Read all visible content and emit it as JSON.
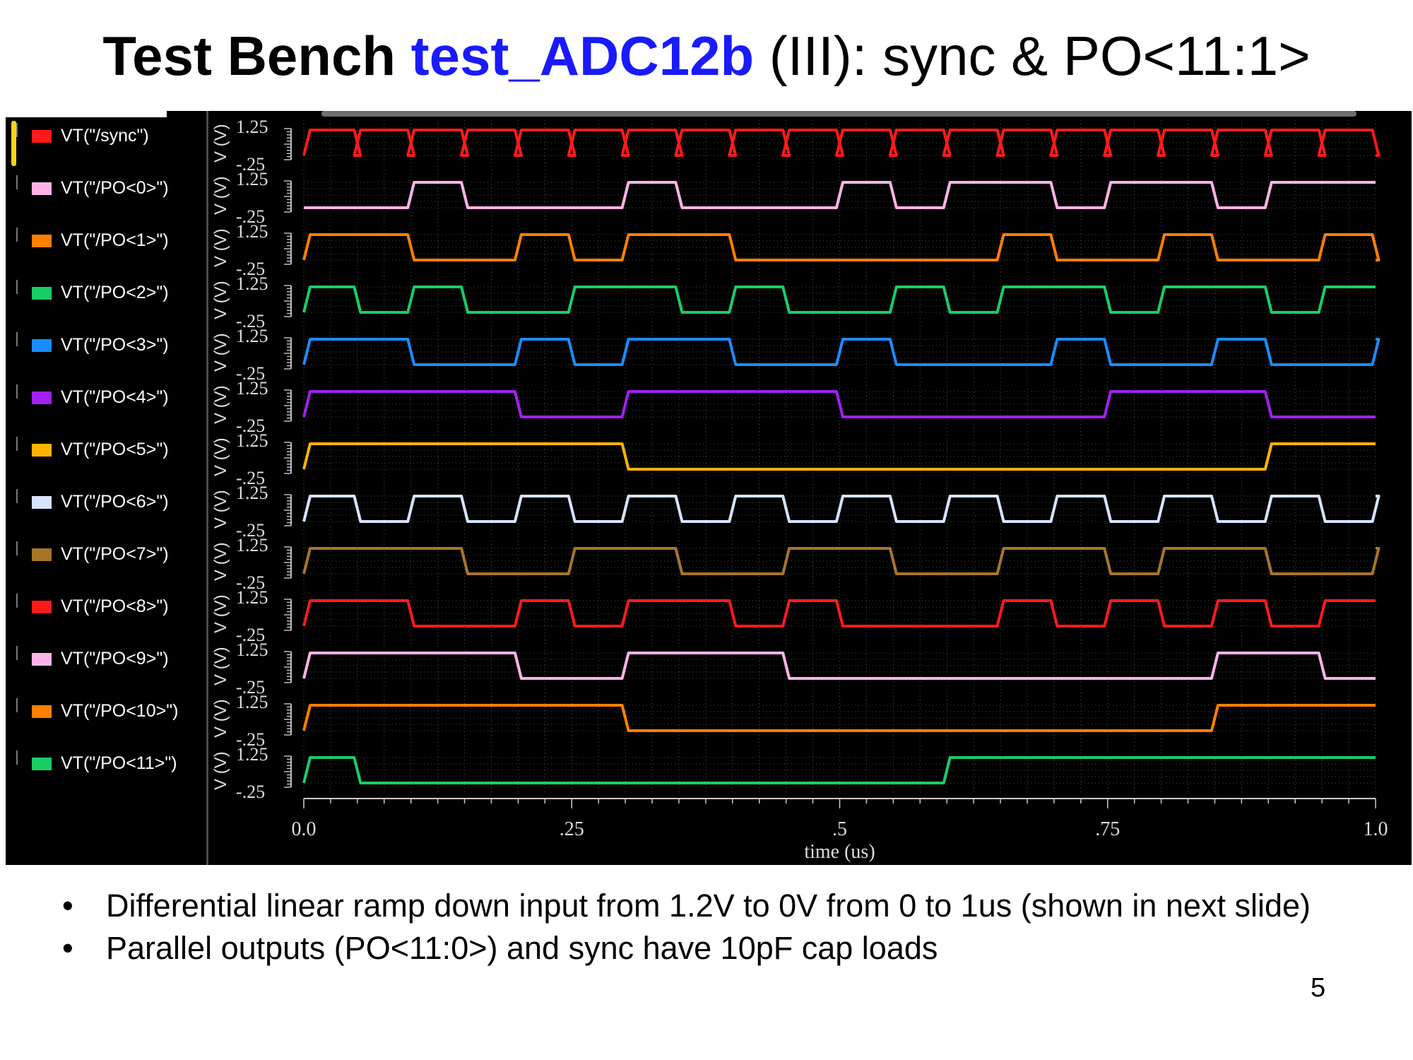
{
  "slide": {
    "title_part1": "Test Bench ",
    "title_part2": "test_ADC12b",
    "title_part3": " (III): sync & PO<11:1>",
    "bullets": [
      "Differential linear ramp down input from 1.2V to 0V from 0 to 1us (shown in next slide)",
      "Parallel outputs (PO<11:0>) and sync have 10pF cap loads"
    ],
    "page_number": "5"
  },
  "chart_data": {
    "type": "line",
    "xlabel": "time (us)",
    "ylabel": "V (V)",
    "x_range": [
      0,
      1.0
    ],
    "x_ticks": [
      "0.0",
      ".25",
      ".5",
      ".75",
      "1.0"
    ],
    "y_range": [
      -0.25,
      1.25
    ],
    "y_ticks": [
      "1.25",
      "-.25"
    ],
    "high_level": 1.2,
    "low_level": 0.0,
    "grid": true,
    "legend_placement": "left",
    "background": "#000000",
    "series": [
      {
        "name": "VT(\"/sync\")",
        "color": "#ff1a1a",
        "initial": 1,
        "transitions": [
          0.05,
          0.05,
          0.1,
          0.1,
          0.15,
          0.15,
          0.2,
          0.2,
          0.25,
          0.25,
          0.3,
          0.3,
          0.35,
          0.35,
          0.4,
          0.4,
          0.45,
          0.45,
          0.5,
          0.5,
          0.55,
          0.55,
          0.6,
          0.6,
          0.65,
          0.65,
          0.7,
          0.7,
          0.75,
          0.75,
          0.8,
          0.8,
          0.85,
          0.85,
          0.9,
          0.9,
          0.95,
          0.95,
          1.0
        ]
      },
      {
        "name": "VT(\"/PO<0>\")",
        "color": "#ffb3e6",
        "initial": 0,
        "transitions": [
          0.1,
          0.15,
          0.3,
          0.35,
          0.5,
          0.55,
          0.6,
          0.7,
          0.75,
          0.85,
          0.9
        ]
      },
      {
        "name": "VT(\"/PO<1>\")",
        "color": "#ff8000",
        "initial": 1,
        "transitions": [
          0.1,
          0.2,
          0.25,
          0.3,
          0.4,
          0.65,
          0.7,
          0.8,
          0.85,
          0.95,
          1.0
        ]
      },
      {
        "name": "VT(\"/PO<2>\")",
        "color": "#19cc66",
        "initial": 1,
        "transitions": [
          0.05,
          0.1,
          0.15,
          0.25,
          0.35,
          0.4,
          0.45,
          0.55,
          0.6,
          0.65,
          0.75,
          0.8,
          0.9,
          0.95
        ]
      },
      {
        "name": "VT(\"/PO<3>\")",
        "color": "#1a8cff",
        "initial": 1,
        "transitions": [
          0.1,
          0.2,
          0.25,
          0.3,
          0.4,
          0.5,
          0.55,
          0.7,
          0.75,
          0.85,
          0.9,
          1.0
        ]
      },
      {
        "name": "VT(\"/PO<4>\")",
        "color": "#a020f0",
        "initial": 1,
        "transitions": [
          0.2,
          0.3,
          0.5,
          0.75,
          0.9
        ]
      },
      {
        "name": "VT(\"/PO<5>\")",
        "color": "#ffb300",
        "initial": 1,
        "transitions": [
          0.3,
          0.9
        ]
      },
      {
        "name": "VT(\"/PO<6>\")",
        "color": "#d6e4ff",
        "initial": 1,
        "transitions": [
          0.05,
          0.1,
          0.15,
          0.2,
          0.25,
          0.3,
          0.35,
          0.4,
          0.45,
          0.5,
          0.55,
          0.6,
          0.65,
          0.7,
          0.75,
          0.8,
          0.85,
          0.9,
          0.95,
          1.0
        ]
      },
      {
        "name": "VT(\"/PO<7>\")",
        "color": "#a6752a",
        "initial": 1,
        "transitions": [
          0.15,
          0.25,
          0.35,
          0.45,
          0.55,
          0.65,
          0.75,
          0.8,
          0.9,
          1.0
        ]
      },
      {
        "name": "VT(\"/PO<8>\")",
        "color": "#ff1a1a",
        "initial": 1,
        "transitions": [
          0.1,
          0.2,
          0.25,
          0.3,
          0.4,
          0.45,
          0.5,
          0.65,
          0.7,
          0.75,
          0.8,
          0.85,
          0.9,
          0.95
        ]
      },
      {
        "name": "VT(\"/PO<9>\")",
        "color": "#ffb3e6",
        "initial": 1,
        "transitions": [
          0.2,
          0.3,
          0.45,
          0.85,
          0.95
        ]
      },
      {
        "name": "VT(\"/PO<10>\")",
        "color": "#ff8000",
        "initial": 1,
        "transitions": [
          0.3,
          0.85
        ]
      },
      {
        "name": "VT(\"/PO<11>\")",
        "color": "#19cc66",
        "initial": 1,
        "transitions": [
          0.05,
          0.6
        ]
      }
    ]
  }
}
